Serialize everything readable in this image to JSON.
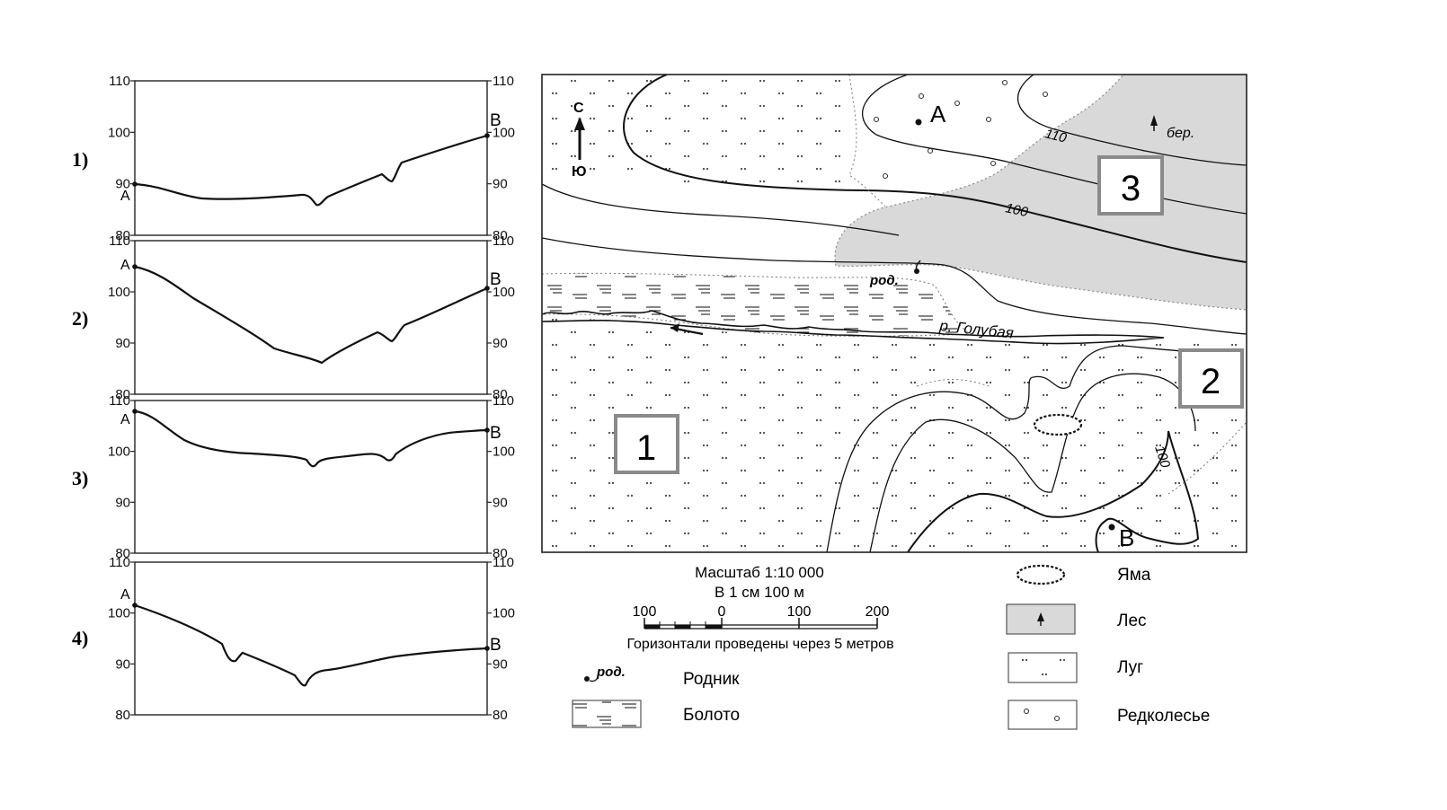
{
  "profiles": {
    "ticks": [
      "110",
      "100",
      "90",
      "80"
    ],
    "point_start": "A",
    "point_end": "B",
    "items": [
      {
        "label": "1)"
      },
      {
        "label": "2)"
      },
      {
        "label": "3)"
      },
      {
        "label": "4)"
      }
    ]
  },
  "map": {
    "north": "С",
    "south": "Ю",
    "point_a": "A",
    "point_b": "B",
    "spring_label": "род.",
    "river_label": "р. Голубая",
    "birch_label": "бер.",
    "contour_110": "110",
    "contour_100": "100",
    "contour_100_b": "100",
    "area_1": "1",
    "area_2": "2",
    "area_3": "3"
  },
  "legend": {
    "scale_title": "Масштаб 1:10 000",
    "scale_sub": "В 1 см 100 м",
    "scale_ticks": [
      "100",
      "0",
      "100",
      "200"
    ],
    "contour_note": "Горизонтали проведены через 5 метров",
    "spring_symbol": "род.",
    "items": {
      "spring": "Родник",
      "swamp": "Болото",
      "pit": "Яма",
      "forest": "Лес",
      "meadow": "Луг",
      "sparse": "Редколесье"
    }
  },
  "colors": {
    "forest_fill": "#d9d9d9",
    "frame_gray": "#8a8a8a",
    "ink": "#111111"
  }
}
